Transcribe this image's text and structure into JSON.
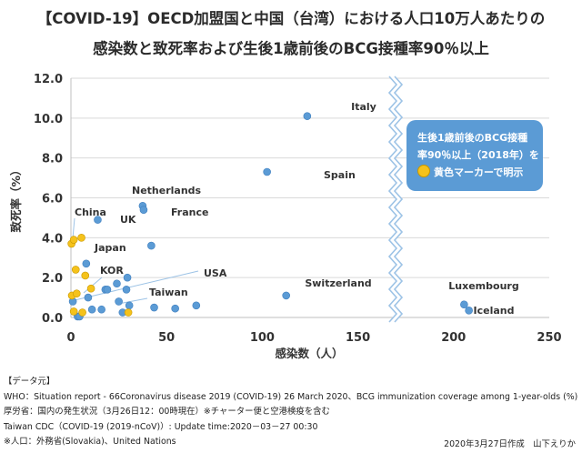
{
  "title_line1": "【COVID-19】OECD加盟国と中国（台湾）における人口10万人あたりの",
  "title_line2": "感染数と致死率および生後1歳前後のBCG接種率90％以上",
  "callout": {
    "line1": "生後1歳前後のBCG接種",
    "line2": "率90％以上（2018年）を",
    "line3": "黄色マーカーで明示"
  },
  "colors": {
    "normal": "#5b9bd5",
    "bcg": "#f5c21b",
    "callout_bg": "#5b9bd5",
    "line": "#9dc3e6"
  },
  "notes": {
    "header": "【データ元】",
    "who": "WHO：Situation report - 66Coronavirus disease 2019 (COVID-19) 26 March 2020、BCG immunization coverage among 1-year-olds (%)",
    "mhlw": "厚労省：国内の発生状況（3月26日12：00時現在）※チャーター便と空港検疫を含む",
    "taiwan": "Taiwan CDC（COVID-19 (2019-nCoV)）: Update time:2020－03－27 00:30",
    "population": "※人口：外務省(Slovakia)、United Nations"
  },
  "credit": "2020年3月27日作成　山下えりか",
  "chart_data": {
    "type": "scatter",
    "xlabel": "感染数（人）",
    "ylabel": "致死率（%）",
    "xlim": [
      0,
      250
    ],
    "ylim": [
      0,
      12
    ],
    "xticks": [
      "0",
      "50",
      "100",
      "150",
      "200",
      "250"
    ],
    "yticks": [
      "0.0",
      "2.0",
      "4.0",
      "6.0",
      "8.0",
      "10.0",
      "12.0"
    ],
    "grid": "horizontal",
    "axis_break": "between 150 and 200",
    "labels": {
      "italy": "Italy",
      "spain": "Spain",
      "netherlands": "Netherlands",
      "france": "France",
      "china": "China",
      "uk": "UK",
      "japan": "Japan",
      "kor": "KOR",
      "usa": "USA",
      "taiwan": "Taiwan",
      "switzerland": "Switzerland",
      "luxembourg": "Luxembourg",
      "iceland": "Iceland"
    },
    "points": [
      {
        "x": 123.5,
        "y": 10.1,
        "bcg": false
      },
      {
        "x": 102.5,
        "y": 7.3,
        "bcg": false
      },
      {
        "x": 37.5,
        "y": 5.6,
        "bcg": false
      },
      {
        "x": 38.0,
        "y": 5.4,
        "bcg": false
      },
      {
        "x": 14.0,
        "y": 4.9,
        "bcg": false
      },
      {
        "x": 42.0,
        "y": 3.6,
        "bcg": false
      },
      {
        "x": 8.0,
        "y": 2.7,
        "bcg": false
      },
      {
        "x": 24.0,
        "y": 1.7,
        "bcg": false
      },
      {
        "x": 29.5,
        "y": 2.0,
        "bcg": false
      },
      {
        "x": 18.0,
        "y": 1.4,
        "bcg": false
      },
      {
        "x": 19.0,
        "y": 1.4,
        "bcg": false
      },
      {
        "x": 29.0,
        "y": 1.4,
        "bcg": false
      },
      {
        "x": 9.0,
        "y": 1.0,
        "bcg": false
      },
      {
        "x": 25.0,
        "y": 0.8,
        "bcg": false
      },
      {
        "x": 30.5,
        "y": 0.6,
        "bcg": false
      },
      {
        "x": 11.0,
        "y": 0.4,
        "bcg": false
      },
      {
        "x": 16.0,
        "y": 0.4,
        "bcg": false
      },
      {
        "x": 27.0,
        "y": 0.25,
        "bcg": false
      },
      {
        "x": 43.5,
        "y": 0.5,
        "bcg": false
      },
      {
        "x": 54.5,
        "y": 0.45,
        "bcg": false
      },
      {
        "x": 65.5,
        "y": 0.6,
        "bcg": false
      },
      {
        "x": 112.5,
        "y": 1.1,
        "bcg": false
      },
      {
        "x": 205.5,
        "y": 0.65,
        "bcg": false
      },
      {
        "x": 208.0,
        "y": 0.35,
        "bcg": false
      },
      {
        "x": 1.0,
        "y": 0.8,
        "bcg": false
      },
      {
        "x": 3.5,
        "y": 0.05,
        "bcg": false
      },
      {
        "x": 4.5,
        "y": 0.05,
        "bcg": false
      },
      {
        "x": 0.3,
        "y": 3.7,
        "bcg": true
      },
      {
        "x": 1.5,
        "y": 3.9,
        "bcg": true
      },
      {
        "x": 5.5,
        "y": 4.0,
        "bcg": true
      },
      {
        "x": 2.5,
        "y": 2.4,
        "bcg": true
      },
      {
        "x": 7.5,
        "y": 2.1,
        "bcg": true
      },
      {
        "x": 0.5,
        "y": 1.1,
        "bcg": true
      },
      {
        "x": 3.0,
        "y": 1.2,
        "bcg": true
      },
      {
        "x": 10.5,
        "y": 1.45,
        "bcg": true
      },
      {
        "x": 1.5,
        "y": 0.3,
        "bcg": true
      },
      {
        "x": 6.0,
        "y": 0.25,
        "bcg": true
      },
      {
        "x": 30.0,
        "y": 0.25,
        "bcg": true
      }
    ]
  }
}
